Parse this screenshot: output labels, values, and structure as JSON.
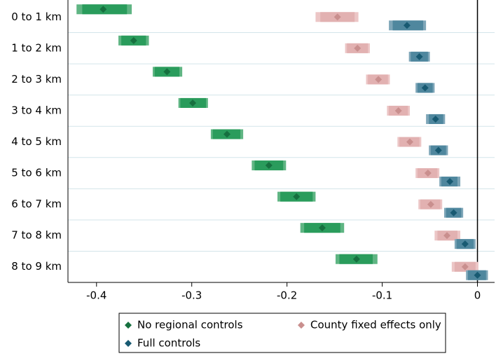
{
  "chart_data": {
    "type": "coefplot",
    "categories": [
      "0 to 1 km",
      "1 to 2 km",
      "2 to 3 km",
      "3 to 4 km",
      "4 to 5 km",
      "5 to 6 km",
      "6 to 7 km",
      "7 to 8 km",
      "8 to 9 km"
    ],
    "xlim": [
      -0.43,
      0.018
    ],
    "xticks": [
      -0.4,
      -0.3,
      -0.2,
      -0.1,
      0
    ],
    "reference_line": 0,
    "series": [
      {
        "name": "No regional controls",
        "color": "#5fb583",
        "inner_color": "#2a9c5c",
        "point_color": "#16703f",
        "values": [
          -0.393,
          -0.361,
          -0.326,
          -0.299,
          -0.263,
          -0.219,
          -0.19,
          -0.163,
          -0.127
        ],
        "ci95_low": [
          -0.421,
          -0.377,
          -0.341,
          -0.314,
          -0.28,
          -0.237,
          -0.21,
          -0.186,
          -0.149
        ],
        "ci95_high": [
          -0.363,
          -0.345,
          -0.31,
          -0.283,
          -0.246,
          -0.201,
          -0.17,
          -0.14,
          -0.105
        ],
        "ci90_low": [
          -0.415,
          -0.374,
          -0.339,
          -0.312,
          -0.278,
          -0.234,
          -0.207,
          -0.182,
          -0.145
        ],
        "ci90_high": [
          -0.368,
          -0.348,
          -0.313,
          -0.285,
          -0.249,
          -0.204,
          -0.173,
          -0.144,
          -0.11
        ]
      },
      {
        "name": "County fixed effects only",
        "color": "#ecc6c6",
        "inner_color": "#e2b1b1",
        "point_color": "#c98f8e",
        "values": [
          -0.147,
          -0.126,
          -0.104,
          -0.083,
          -0.071,
          -0.052,
          -0.049,
          -0.032,
          -0.013
        ],
        "ci95_low": [
          -0.17,
          -0.139,
          -0.117,
          -0.095,
          -0.084,
          -0.065,
          -0.062,
          -0.045,
          -0.027
        ],
        "ci95_high": [
          -0.125,
          -0.113,
          -0.092,
          -0.071,
          -0.059,
          -0.04,
          -0.037,
          -0.018,
          0.001
        ],
        "ci90_low": [
          -0.165,
          -0.137,
          -0.115,
          -0.093,
          -0.082,
          -0.063,
          -0.06,
          -0.042,
          -0.024
        ],
        "ci90_high": [
          -0.129,
          -0.115,
          -0.094,
          -0.073,
          -0.061,
          -0.042,
          -0.039,
          -0.021,
          -0.002
        ]
      },
      {
        "name": "Full controls",
        "color": "#7ea6b8",
        "inner_color": "#4f879e",
        "point_color": "#185a72",
        "values": [
          -0.074,
          -0.061,
          -0.055,
          -0.044,
          -0.041,
          -0.029,
          -0.025,
          -0.013,
          0.0
        ],
        "ci95_low": [
          -0.093,
          -0.072,
          -0.065,
          -0.054,
          -0.051,
          -0.04,
          -0.035,
          -0.024,
          -0.012
        ],
        "ci95_high": [
          -0.054,
          -0.05,
          -0.045,
          -0.034,
          -0.031,
          -0.018,
          -0.015,
          -0.002,
          0.011
        ],
        "ci90_low": [
          -0.089,
          -0.07,
          -0.063,
          -0.051,
          -0.049,
          -0.038,
          -0.033,
          -0.022,
          -0.01
        ],
        "ci90_high": [
          -0.057,
          -0.052,
          -0.047,
          -0.036,
          -0.033,
          -0.021,
          -0.017,
          -0.004,
          0.009
        ]
      }
    ]
  }
}
